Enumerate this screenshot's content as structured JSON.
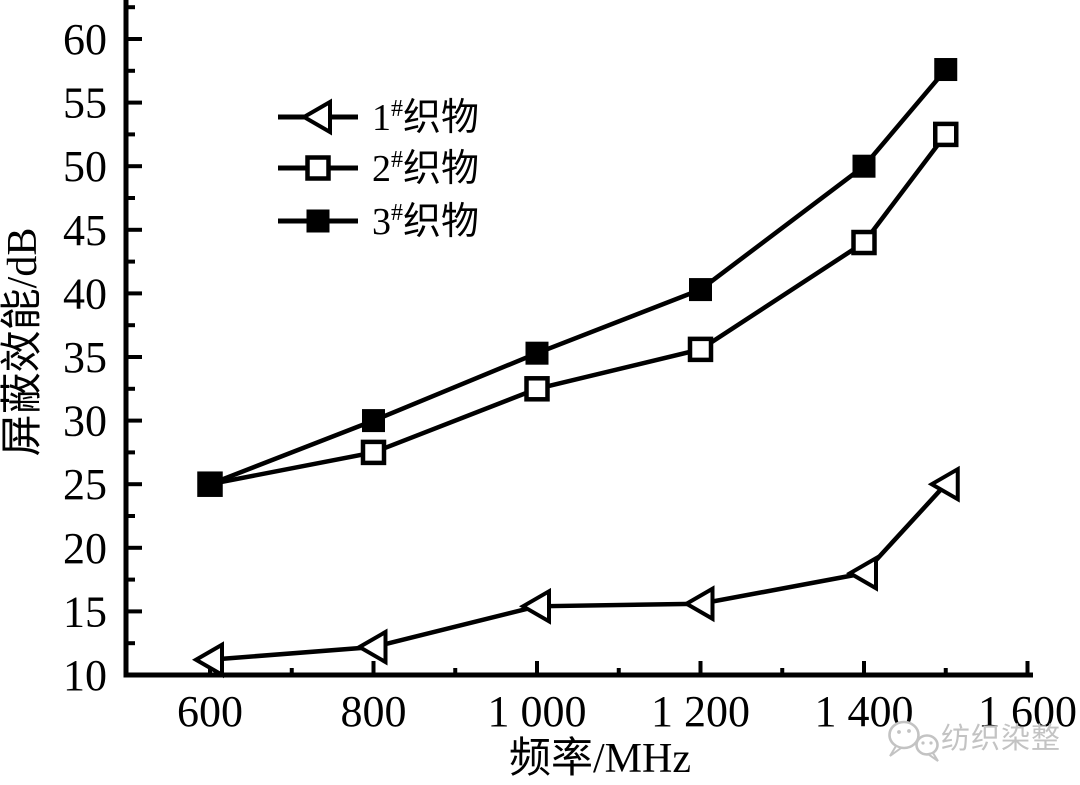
{
  "figure": {
    "background": "#ffffff",
    "ink_color": "#000000"
  },
  "chart_data": {
    "type": "line",
    "title": "",
    "xlabel": "频率/MHz",
    "ylabel": "屏蔽效能/dB",
    "grid": false,
    "legend_position": "upper-left-inside",
    "x": [
      600,
      800,
      1000,
      1200,
      1400,
      1500
    ],
    "series": [
      {
        "name": "1#织物",
        "marker": "open-left-triangle",
        "legend_parts": {
          "prefix": "1",
          "sup": "#",
          "suffix": "织物"
        },
        "values": [
          11.2,
          12.2,
          15.4,
          15.6,
          18.0,
          25.0
        ]
      },
      {
        "name": "2#织物",
        "marker": "open-square",
        "legend_parts": {
          "prefix": "2",
          "sup": "#",
          "suffix": "织物"
        },
        "values": [
          25.0,
          27.5,
          32.5,
          35.6,
          44.0,
          52.5
        ]
      },
      {
        "name": "3#织物",
        "marker": "filled-square",
        "legend_parts": {
          "prefix": "3",
          "sup": "#",
          "suffix": "织物"
        },
        "values": [
          25.0,
          30.0,
          35.3,
          40.3,
          50.0,
          57.6
        ]
      }
    ],
    "x_axis": {
      "label": "频率/MHz",
      "range": [
        497,
        1608
      ],
      "major_ticks": [
        600,
        800,
        1000,
        1200,
        1400,
        1600
      ],
      "tick_labels": [
        "600",
        "800",
        "1 000",
        "1 200",
        "1 400",
        "1 600"
      ],
      "minor_ticks": [
        700,
        900,
        1100,
        1300,
        1500
      ]
    },
    "y_axis": {
      "label": "屏蔽效能/dB",
      "range": [
        10,
        63
      ],
      "major_ticks": [
        10,
        15,
        20,
        25,
        30,
        35,
        40,
        45,
        50,
        55,
        60
      ],
      "minor_tick_step": 2.5
    }
  },
  "watermark": {
    "text": "纺织染整",
    "icon": "wechat-icon",
    "color": "#c3c3c3"
  }
}
